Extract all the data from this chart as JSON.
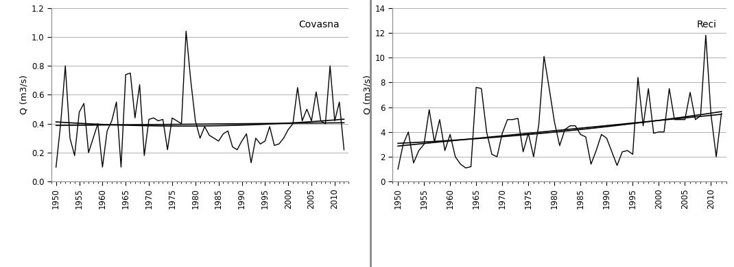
{
  "covasna": {
    "years": [
      1950,
      1951,
      1952,
      1953,
      1954,
      1955,
      1956,
      1957,
      1958,
      1959,
      1960,
      1961,
      1962,
      1963,
      1964,
      1965,
      1966,
      1967,
      1968,
      1969,
      1970,
      1971,
      1972,
      1973,
      1974,
      1975,
      1976,
      1977,
      1978,
      1979,
      1980,
      1981,
      1982,
      1983,
      1984,
      1985,
      1986,
      1987,
      1988,
      1989,
      1990,
      1991,
      1992,
      1993,
      1994,
      1995,
      1996,
      1997,
      1998,
      1999,
      2000,
      2001,
      2002,
      2003,
      2004,
      2005,
      2006,
      2007,
      2008,
      2009,
      2010,
      2011,
      2012
    ],
    "values": [
      0.1,
      0.4,
      0.8,
      0.3,
      0.18,
      0.48,
      0.54,
      0.2,
      0.3,
      0.4,
      0.1,
      0.35,
      0.42,
      0.55,
      0.1,
      0.74,
      0.75,
      0.44,
      0.67,
      0.18,
      0.43,
      0.44,
      0.42,
      0.43,
      0.22,
      0.44,
      0.42,
      0.4,
      1.04,
      0.7,
      0.42,
      0.3,
      0.38,
      0.32,
      0.3,
      0.28,
      0.33,
      0.35,
      0.24,
      0.22,
      0.28,
      0.33,
      0.13,
      0.3,
      0.26,
      0.28,
      0.38,
      0.25,
      0.26,
      0.3,
      0.36,
      0.4,
      0.65,
      0.42,
      0.5,
      0.42,
      0.62,
      0.42,
      0.4,
      0.8,
      0.42,
      0.55,
      0.22
    ],
    "ylabel": "Q (m3/s)",
    "label": "Covasna",
    "ylim": [
      0.0,
      1.2
    ],
    "yticks": [
      0.0,
      0.2,
      0.4,
      0.6,
      0.8,
      1.0,
      1.2
    ]
  },
  "reci": {
    "years": [
      1950,
      1951,
      1952,
      1953,
      1954,
      1955,
      1956,
      1957,
      1958,
      1959,
      1960,
      1961,
      1962,
      1963,
      1964,
      1965,
      1966,
      1967,
      1968,
      1969,
      1970,
      1971,
      1972,
      1973,
      1974,
      1975,
      1976,
      1977,
      1978,
      1979,
      1980,
      1981,
      1982,
      1983,
      1984,
      1985,
      1986,
      1987,
      1988,
      1989,
      1990,
      1991,
      1992,
      1993,
      1994,
      1995,
      1996,
      1997,
      1998,
      1999,
      2000,
      2001,
      2002,
      2003,
      2004,
      2005,
      2006,
      2007,
      2008,
      2009,
      2010,
      2011,
      2012
    ],
    "values": [
      1.0,
      3.0,
      4.0,
      1.5,
      2.5,
      3.0,
      5.8,
      3.2,
      5.0,
      2.5,
      3.8,
      2.0,
      1.4,
      1.1,
      1.2,
      7.6,
      7.5,
      4.0,
      2.2,
      2.0,
      3.9,
      5.0,
      5.0,
      5.1,
      2.4,
      3.9,
      2.0,
      4.6,
      10.1,
      7.5,
      4.8,
      2.9,
      4.2,
      4.5,
      4.5,
      3.8,
      3.6,
      1.4,
      2.5,
      3.8,
      3.5,
      2.4,
      1.3,
      2.4,
      2.5,
      2.2,
      8.4,
      4.5,
      7.5,
      3.9,
      4.0,
      4.0,
      7.5,
      5.0,
      5.0,
      5.0,
      7.2,
      5.0,
      5.3,
      11.8,
      5.4,
      2.0,
      5.5
    ],
    "ylabel": "Q (m3/s)",
    "label": "Reci",
    "ylim": [
      0,
      14
    ],
    "yticks": [
      0,
      2,
      4,
      6,
      8,
      10,
      12,
      14
    ]
  },
  "xlim": [
    1949,
    2013
  ],
  "xticks": [
    1950,
    1955,
    1960,
    1965,
    1970,
    1975,
    1980,
    1985,
    1990,
    1995,
    2000,
    2005,
    2010
  ],
  "line_color": "#000000",
  "trend_color": "#000000",
  "bg_color": "#ffffff",
  "grid_color": "#b0b0b0",
  "divider_color": "#888888"
}
